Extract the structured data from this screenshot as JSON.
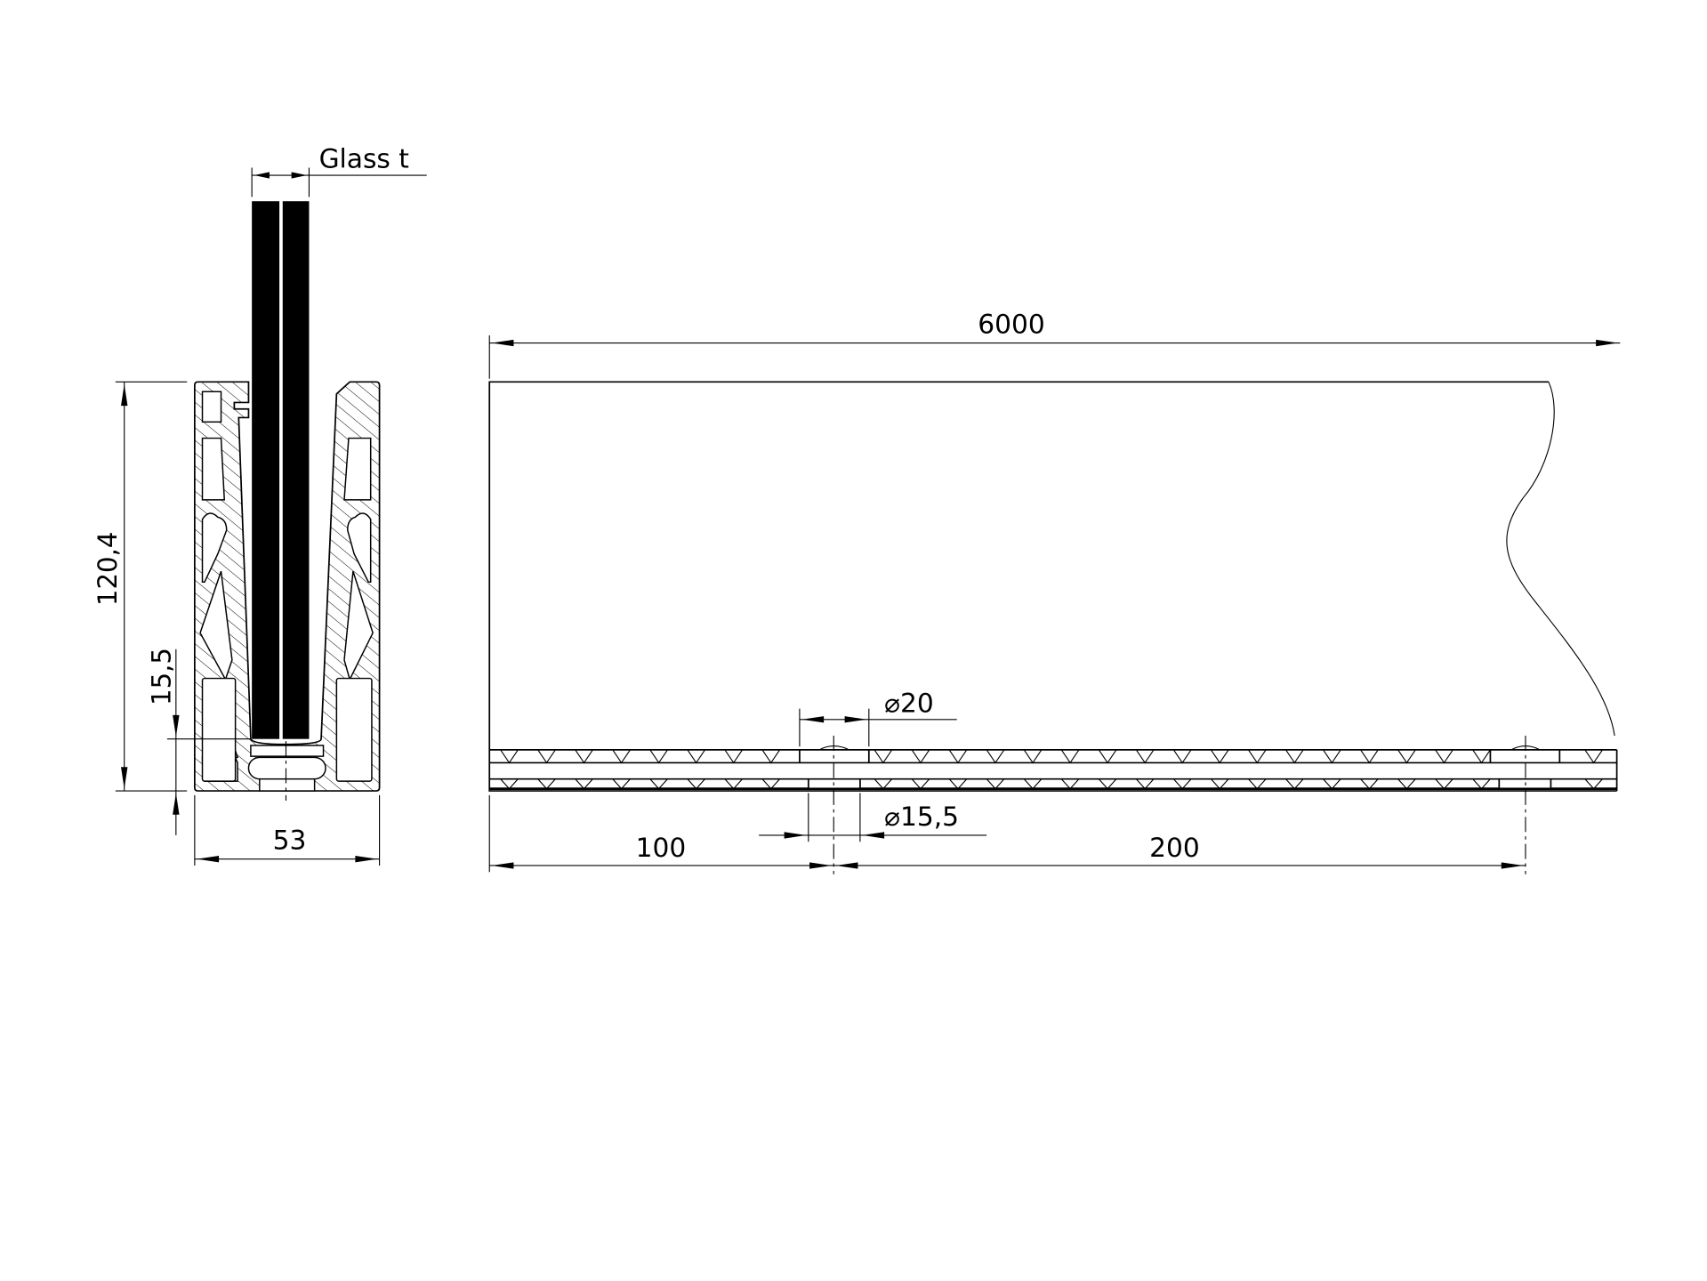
{
  "section_view": {
    "glass_label": "Glass t",
    "height_dim": "120,4",
    "bottom_offset_dim": "15,5",
    "width_dim": "53"
  },
  "side_view": {
    "length_dim": "6000",
    "top_hole_dim": "20",
    "bottom_hole_dim": "15,5",
    "first_hole_offset_dim": "100",
    "hole_spacing_dim": "200",
    "diameter_symbol": "⌀"
  },
  "colors": {
    "line": "#000000",
    "glass": "#000000",
    "background": "#ffffff"
  }
}
